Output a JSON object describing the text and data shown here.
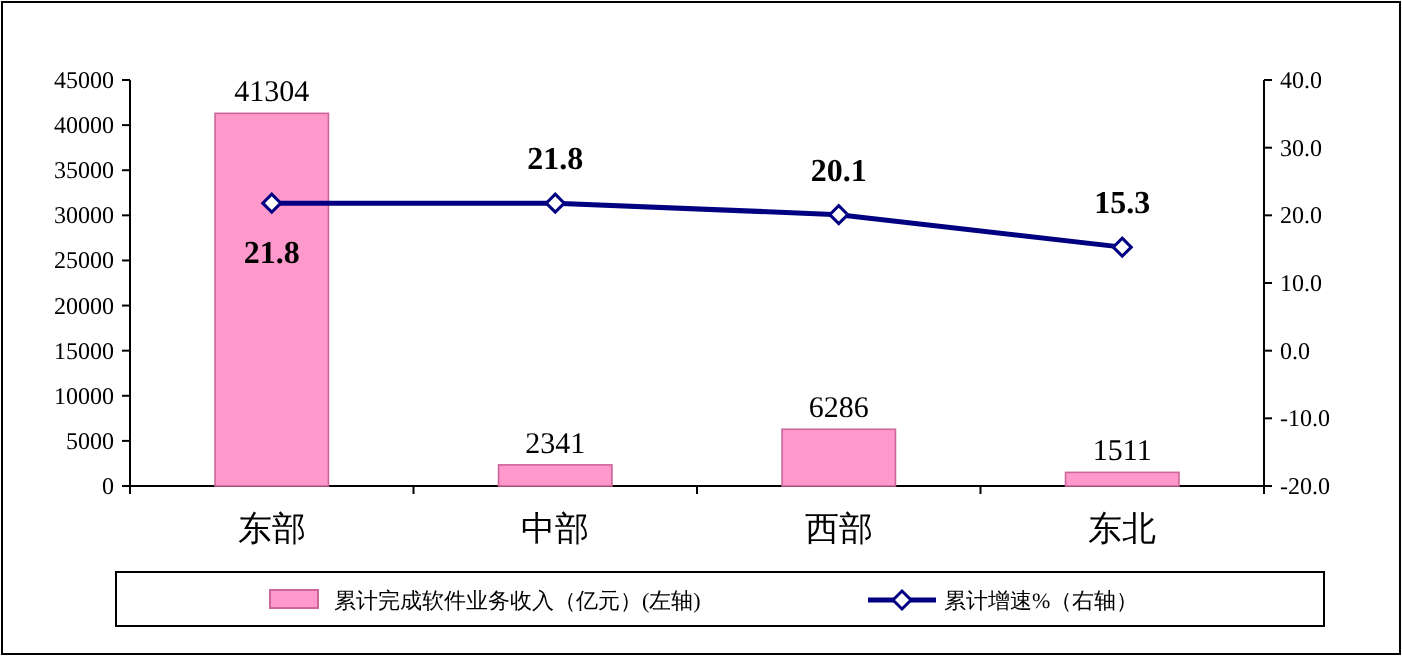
{
  "chart_data": {
    "type": "bar",
    "categories": [
      "东部",
      "中部",
      "西部",
      "东北"
    ],
    "series": [
      {
        "name": "累计完成软件业务收入（亿元）(左轴)",
        "color": "#ff99cc",
        "values": [
          41304,
          2341,
          6286,
          1511
        ]
      },
      {
        "name": "累计增速%（右轴）",
        "type": "line",
        "axis": "y2",
        "color": "#000080",
        "values": [
          21.8,
          21.8,
          20.1,
          15.3
        ]
      }
    ],
    "ylim": [
      0,
      45000
    ],
    "yticks": [
      0,
      5000,
      10000,
      15000,
      20000,
      25000,
      30000,
      35000,
      40000,
      45000
    ],
    "y2lim": [
      -20,
      40
    ],
    "y2ticks": [
      {
        "value": -20,
        "label": "-20.0"
      },
      {
        "value": -10,
        "label": "-10.0"
      },
      {
        "value": 0,
        "label": "0.0"
      },
      {
        "value": 10,
        "label": "10.0"
      },
      {
        "value": 20,
        "label": "20.0"
      },
      {
        "value": 30,
        "label": "30.0"
      },
      {
        "value": 40,
        "label": "40.0"
      }
    ],
    "data_labels": true,
    "legend": "bottom",
    "marker": "diamond",
    "grid": false
  }
}
